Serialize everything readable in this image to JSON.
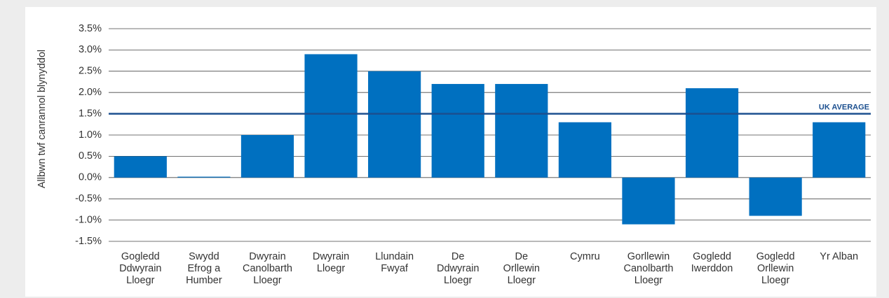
{
  "chart_data": {
    "type": "bar",
    "y_axis_label": "Allbwn twf canrannol blynyddol",
    "categories": [
      "Gogledd\nDdwyrain\nLloegr",
      "Swydd\nEfrog a\nHumber",
      "Dwyrain\nCanolbarth\nLloegr",
      "Dwyrain\nLloegr",
      "Llundain\nFwyaf",
      "De\nDdwyrain\nLloegr",
      "De\nOrllewin\nLloegr",
      "Cymru",
      "Gorllewin\nCanolbarth\nLloegr",
      "Gogledd\nIwerddon",
      "Gogledd\nOrllewin\nLloegr",
      "Yr Alban"
    ],
    "values": [
      0.5,
      0.02,
      1.0,
      2.9,
      2.5,
      2.2,
      2.2,
      1.3,
      -1.1,
      2.1,
      -0.9,
      1.3
    ],
    "color": "#0070c0",
    "ylim": [
      -1.5,
      3.5
    ],
    "yticks": [
      {
        "value": -1.5,
        "label": "-1.5%"
      },
      {
        "value": -1.0,
        "label": "-1.0%"
      },
      {
        "value": -0.5,
        "label": "-0.5%"
      },
      {
        "value": 0.0,
        "label": "0.0%"
      },
      {
        "value": 0.5,
        "label": "0.5%"
      },
      {
        "value": 1.0,
        "label": "1.0%"
      },
      {
        "value": 1.5,
        "label": "1.5%"
      },
      {
        "value": 2.0,
        "label": "2.0%"
      },
      {
        "value": 2.5,
        "label": "2.5%"
      },
      {
        "value": 3.0,
        "label": "3.0%"
      },
      {
        "value": 3.5,
        "label": "3.5%"
      }
    ],
    "grid": true,
    "reference_line": {
      "value": 1.5,
      "label": "UK AVERAGE",
      "color": "#1b4f8f"
    }
  }
}
